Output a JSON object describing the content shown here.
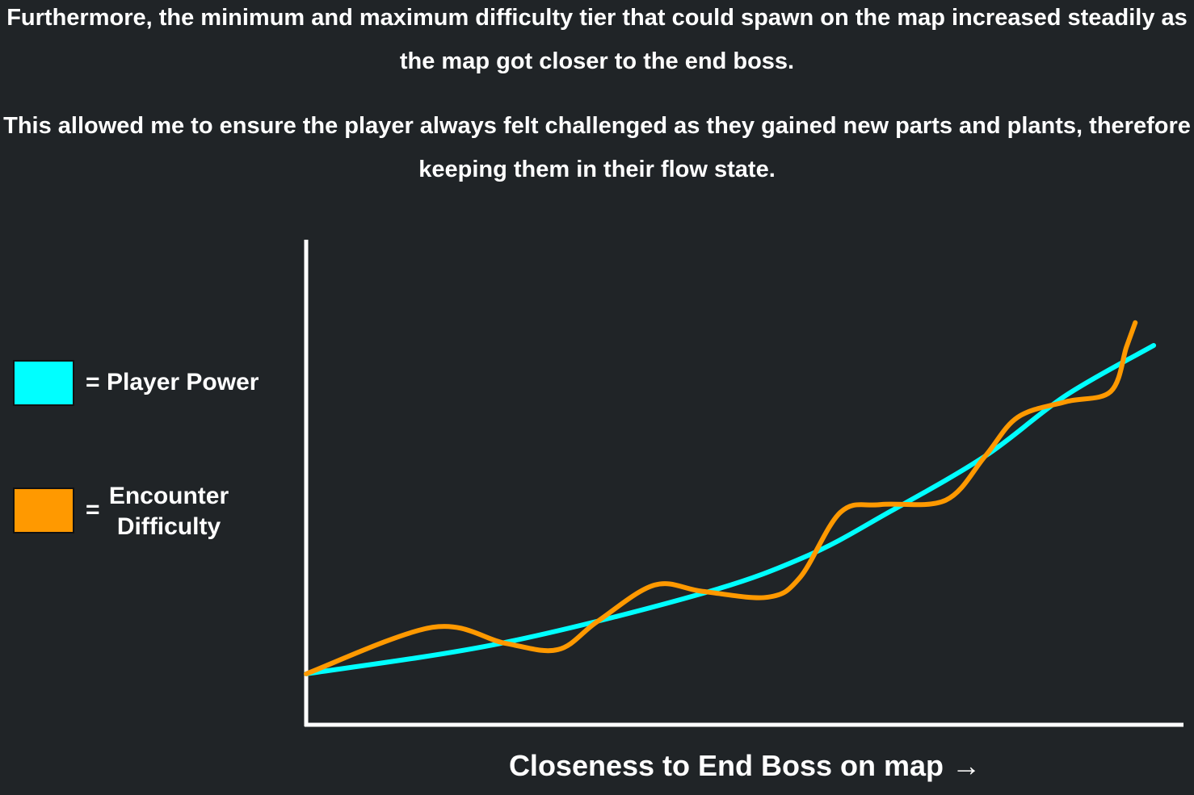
{
  "paragraphs": [
    "Furthermore, the minimum and maximum difficulty tier that could spawn on the map increased steadily as the map got closer to the end boss.",
    "This allowed me to ensure the player always felt challenged as they gained new parts and plants, therefore keeping them in their flow state."
  ],
  "legend_separator": "=",
  "chart_data": {
    "type": "line",
    "x_label": "Closeness to End Boss on map →",
    "xlim": [
      0,
      100
    ],
    "ylim": [
      0,
      100
    ],
    "series": [
      {
        "name": "Player Power",
        "color": "#00ffff",
        "x": [
          0,
          22.2,
          45.2,
          57.2,
          66.4,
          77.4,
          86.6,
          96.6
        ],
        "values": [
          10.5,
          16.8,
          27.1,
          34.9,
          43.8,
          55.4,
          67.9,
          78.2
        ]
      },
      {
        "name": "Encounter Difficulty",
        "color": "#ff9900",
        "x": [
          0,
          14.4,
          22.7,
          28.7,
          33.2,
          39.7,
          45.2,
          52.6,
          56.3,
          60.9,
          65.5,
          72.9,
          77.4,
          81.1,
          86.6,
          91.7,
          93.5,
          94.5
        ],
        "values": [
          10.5,
          20.1,
          16.8,
          15.5,
          21.3,
          28.8,
          27.5,
          26.3,
          30.4,
          43.8,
          45.4,
          46.3,
          55.4,
          63.4,
          66.6,
          68.7,
          77.9,
          82.9
        ]
      }
    ]
  }
}
